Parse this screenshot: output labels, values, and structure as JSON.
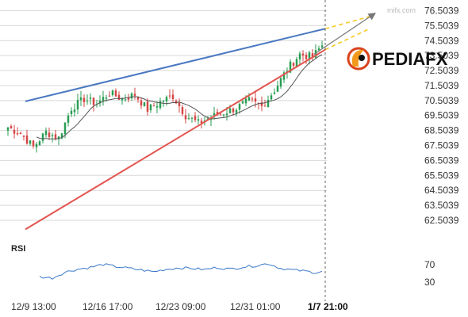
{
  "chart_data": {
    "type": "candlestick",
    "symbol_precision": 4,
    "y_ticks": [
      76.5039,
      75.5039,
      74.5039,
      73.5039,
      72.5039,
      71.5039,
      70.5039,
      69.5039,
      68.5039,
      67.5039,
      66.5039,
      65.5039,
      64.5039,
      63.5039,
      62.5039
    ],
    "y_tick_labels": [
      "76.5039",
      "75.5039",
      "74.5039",
      "73.5039",
      "72.5039",
      "71.5039",
      "70.5039",
      "69.5039",
      "68.5039",
      "67.5039",
      "66.5039",
      "65.5039",
      "64.5039",
      "63.5039",
      "62.5039"
    ],
    "ylim": [
      61.55,
      76.9
    ],
    "x_ticks": [
      "12/9 13:00",
      "12/16 17:00",
      "12/23 09:00",
      "12/31 01:00",
      "1/7 21:00"
    ],
    "current_time_label": "1/7 21:00",
    "candles_count": 100,
    "close_path": [
      [
        0,
        68.7
      ],
      [
        4,
        68.3
      ],
      [
        8,
        67.4
      ],
      [
        12,
        68.4
      ],
      [
        16,
        68.0
      ],
      [
        20,
        70.0
      ],
      [
        24,
        70.6
      ],
      [
        28,
        70.3
      ],
      [
        32,
        71.0
      ],
      [
        36,
        70.6
      ],
      [
        40,
        70.9
      ],
      [
        44,
        69.9
      ],
      [
        48,
        70.4
      ],
      [
        52,
        70.8
      ],
      [
        56,
        69.5
      ],
      [
        60,
        69.0
      ],
      [
        64,
        69.4
      ],
      [
        68,
        69.7
      ],
      [
        72,
        70.0
      ],
      [
        76,
        70.5
      ],
      [
        80,
        70.1
      ],
      [
        84,
        71.2
      ],
      [
        88,
        72.6
      ],
      [
        92,
        73.6
      ],
      [
        96,
        73.4
      ],
      [
        99,
        74.2
      ]
    ],
    "ma_period": 10,
    "overlays": {
      "resistance_line": {
        "color": "#4a78c2",
        "points": [
          [
            6,
            70.45
          ],
          [
            100.5,
            75.3
          ]
        ]
      },
      "support_line": {
        "color": "#e45450",
        "points": [
          [
            6,
            61.9
          ],
          [
            100.5,
            73.9
          ]
        ]
      },
      "projection_arrow": {
        "color": "#777777",
        "points": [
          [
            97,
            73.6
          ],
          [
            116,
            76.3
          ]
        ]
      },
      "projection_upper": {
        "color": "#f5c518",
        "points": [
          [
            100.5,
            75.3
          ],
          [
            116,
            76.2
          ]
        ]
      },
      "projection_lower": {
        "color": "#f5c518",
        "points": [
          [
            100.5,
            73.9
          ],
          [
            114.5,
            75.3
          ]
        ]
      }
    },
    "rsi": {
      "title": "RSI",
      "levels": [
        70,
        30
      ],
      "level_labels": [
        "70",
        "30"
      ],
      "ylim": [
        0,
        100
      ],
      "path": [
        [
          10,
          42
        ],
        [
          14,
          39
        ],
        [
          18,
          53
        ],
        [
          22,
          60
        ],
        [
          26,
          64
        ],
        [
          30,
          71
        ],
        [
          34,
          66
        ],
        [
          38,
          62
        ],
        [
          42,
          58
        ],
        [
          46,
          54
        ],
        [
          50,
          60
        ],
        [
          54,
          63
        ],
        [
          58,
          62
        ],
        [
          62,
          59
        ],
        [
          66,
          64
        ],
        [
          70,
          60
        ],
        [
          74,
          65
        ],
        [
          78,
          68
        ],
        [
          82,
          73
        ],
        [
          86,
          62
        ],
        [
          90,
          58
        ],
        [
          94,
          55
        ],
        [
          97,
          52
        ],
        [
          99,
          55
        ]
      ]
    },
    "colors": {
      "up": "#2a9d53",
      "down": "#d64545",
      "ma": "#555555",
      "rsi": "#3a78c9",
      "grid": "#d8d8d8",
      "cursor": "#666666"
    }
  },
  "watermark": "mifx.com",
  "brand": {
    "name": "PEDIAFX",
    "sub": "",
    "colors": {
      "orange": "#f39a1e",
      "red": "#d9431c",
      "dark": "#111111"
    }
  }
}
